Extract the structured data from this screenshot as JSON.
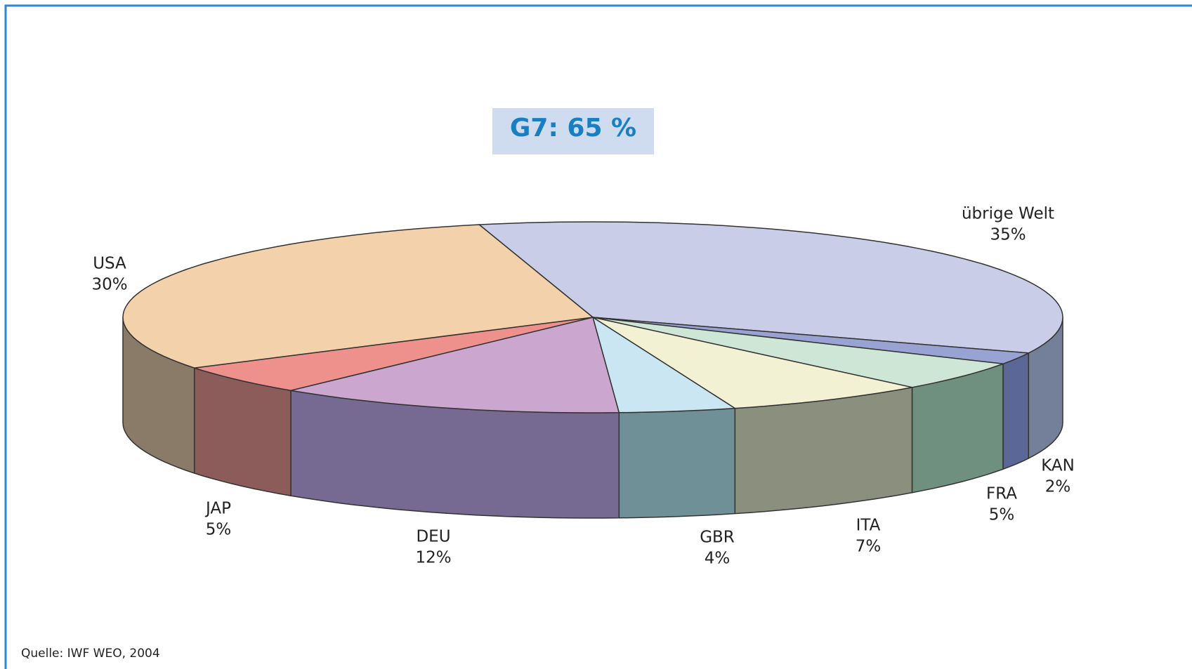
{
  "chart_data": {
    "type": "pie3d",
    "annotation": "G7: 65 %",
    "source": "Quelle: IWF WEO, 2004",
    "categories": [
      "übrige Welt",
      "KAN",
      "FRA",
      "ITA",
      "GBR",
      "DEU",
      "JAP",
      "USA"
    ],
    "values": [
      35,
      2,
      5,
      7,
      4,
      12,
      5,
      30
    ],
    "value_labels": [
      "35%",
      "2%",
      "5%",
      "7%",
      "4%",
      "12%",
      "5%",
      "30%"
    ],
    "colors": [
      "#c9cde8",
      "#98a2d3",
      "#cde6d6",
      "#f3f1d4",
      "#cae6f2",
      "#cba6cf",
      "#ee918c",
      "#f3d1aa"
    ],
    "side_colors": [
      "#747f99",
      "#5b6796",
      "#6f8f7f",
      "#8a8f7e",
      "#6e9096",
      "#766a92",
      "#8c5c5a",
      "#8a7a68"
    ]
  }
}
